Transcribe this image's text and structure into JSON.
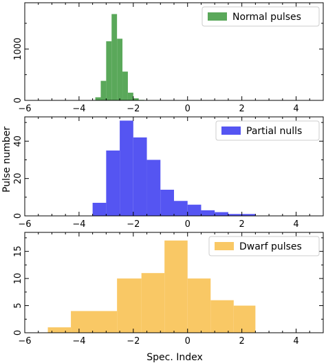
{
  "chart_data": [
    {
      "type": "histogram",
      "legend": "Normal pulses",
      "legend_position": "top-right",
      "color": "#5aa85a",
      "xlim": [
        -6,
        5
      ],
      "ylim": [
        0,
        1900
      ],
      "xticks": [
        -6,
        -4,
        -2,
        0,
        2,
        4
      ],
      "yticks": [
        0,
        1000
      ],
      "xlabel": "",
      "ylabel": "",
      "bins": [
        {
          "x0": -3.4,
          "x1": -3.2,
          "count": 60
        },
        {
          "x0": -3.2,
          "x1": -3.0,
          "count": 380
        },
        {
          "x0": -3.0,
          "x1": -2.8,
          "count": 1150
        },
        {
          "x0": -2.8,
          "x1": -2.6,
          "count": 1680
        },
        {
          "x0": -2.6,
          "x1": -2.4,
          "count": 1200
        },
        {
          "x0": -2.4,
          "x1": -2.2,
          "count": 560
        },
        {
          "x0": -2.2,
          "x1": -2.0,
          "count": 150
        },
        {
          "x0": -2.0,
          "x1": -1.8,
          "count": 40
        },
        {
          "x0": -1.8,
          "x1": -1.6,
          "count": 10
        }
      ]
    },
    {
      "type": "histogram",
      "legend": "Partial nulls",
      "legend_position": "top-right",
      "color": "#5555f2",
      "xlim": [
        -6,
        5
      ],
      "ylim": [
        0,
        53
      ],
      "xticks": [
        -6,
        -4,
        -2,
        0,
        2,
        4
      ],
      "yticks": [
        0,
        20,
        40
      ],
      "xlabel": "",
      "ylabel": "Pulse number",
      "bins": [
        {
          "x0": -3.5,
          "x1": -3.0,
          "count": 7
        },
        {
          "x0": -3.0,
          "x1": -2.5,
          "count": 35
        },
        {
          "x0": -2.5,
          "x1": -2.0,
          "count": 51
        },
        {
          "x0": -2.0,
          "x1": -1.5,
          "count": 42
        },
        {
          "x0": -1.5,
          "x1": -1.0,
          "count": 30
        },
        {
          "x0": -1.0,
          "x1": -0.5,
          "count": 14
        },
        {
          "x0": -0.5,
          "x1": 0.0,
          "count": 8
        },
        {
          "x0": 0.0,
          "x1": 0.5,
          "count": 6
        },
        {
          "x0": 0.5,
          "x1": 1.0,
          "count": 3
        },
        {
          "x0": 1.0,
          "x1": 1.5,
          "count": 2
        },
        {
          "x0": 1.5,
          "x1": 2.0,
          "count": 1
        },
        {
          "x0": 2.0,
          "x1": 2.5,
          "count": 1
        }
      ]
    },
    {
      "type": "histogram",
      "legend": "Dwarf pulses",
      "legend_position": "top-right",
      "color": "#f9c865",
      "xlim": [
        -6,
        5
      ],
      "ylim": [
        0,
        18.5
      ],
      "xticks": [
        -6,
        -4,
        -2,
        0,
        2,
        4
      ],
      "yticks": [
        0,
        5,
        10,
        15
      ],
      "xlabel": "Spec. Index",
      "ylabel": "",
      "bins": [
        {
          "x0": -5.15,
          "x1": -4.3,
          "count": 1
        },
        {
          "x0": -4.3,
          "x1": -2.6,
          "count": 4
        },
        {
          "x0": -2.6,
          "x1": -1.7,
          "count": 10
        },
        {
          "x0": -1.7,
          "x1": -0.85,
          "count": 11
        },
        {
          "x0": -0.85,
          "x1": 0.0,
          "count": 17
        },
        {
          "x0": 0.0,
          "x1": 0.85,
          "count": 10
        },
        {
          "x0": 0.85,
          "x1": 1.7,
          "count": 6
        },
        {
          "x0": 1.7,
          "x1": 2.5,
          "count": 5
        }
      ]
    }
  ]
}
